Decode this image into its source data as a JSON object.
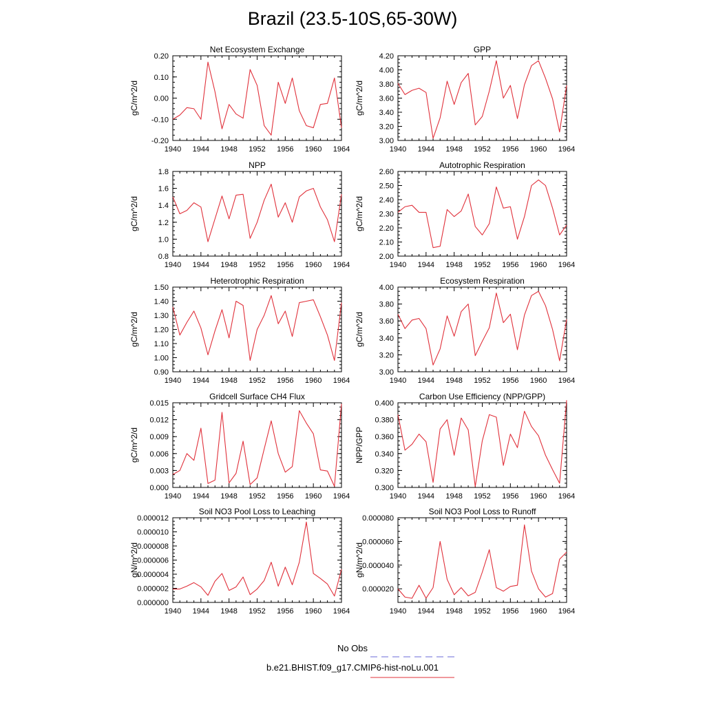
{
  "page": {
    "title": "Brazil (23.5-10S,65-30W)"
  },
  "legend": [
    {
      "label": "No Obs",
      "color": "#6a6ad8",
      "dash": true
    },
    {
      "label": "b.e21.BHIST.f09_g17.CMIP6-hist-noLu.001",
      "color": "#e0303a",
      "dash": false
    }
  ],
  "chart_data": [
    {
      "type": "line",
      "title": "Net Ecosystem Exchange",
      "ylabel": "gC/m^2/d",
      "xlim": [
        1940,
        1964
      ],
      "xticks": [
        "1940",
        "1944",
        "1948",
        "1952",
        "1956",
        "1960",
        "1964"
      ],
      "ylim": [
        -0.2,
        0.2
      ],
      "yticks": [
        "-0.20",
        "-0.10",
        "0.00",
        "0.10",
        "0.20"
      ],
      "x": [
        1940,
        1941,
        1942,
        1943,
        1944,
        1945,
        1946,
        1947,
        1948,
        1949,
        1950,
        1951,
        1952,
        1953,
        1954,
        1955,
        1956,
        1957,
        1958,
        1959,
        1960,
        1961,
        1962,
        1963,
        1964
      ],
      "series": [
        {
          "color": "#e0303a",
          "values": [
            -0.1,
            -0.08,
            -0.045,
            -0.05,
            -0.1,
            0.17,
            0.03,
            -0.145,
            -0.03,
            -0.075,
            -0.095,
            0.135,
            0.06,
            -0.13,
            -0.175,
            0.075,
            -0.025,
            0.095,
            -0.06,
            -0.13,
            -0.14,
            -0.03,
            -0.025,
            0.095,
            -0.14
          ]
        }
      ]
    },
    {
      "type": "line",
      "title": "GPP",
      "ylabel": "gC/m^2/d",
      "xlim": [
        1940,
        1964
      ],
      "xticks": [
        "1940",
        "1944",
        "1948",
        "1952",
        "1956",
        "1960",
        "1964"
      ],
      "ylim": [
        3.0,
        4.2
      ],
      "yticks": [
        "3.00",
        "3.20",
        "3.40",
        "3.60",
        "3.80",
        "4.00",
        "4.20"
      ],
      "x": [
        1940,
        1941,
        1942,
        1943,
        1944,
        1945,
        1946,
        1947,
        1948,
        1949,
        1950,
        1951,
        1952,
        1953,
        1954,
        1955,
        1956,
        1957,
        1958,
        1959,
        1960,
        1961,
        1962,
        1963,
        1964
      ],
      "series": [
        {
          "color": "#e0303a",
          "values": [
            3.81,
            3.65,
            3.71,
            3.74,
            3.68,
            3.03,
            3.32,
            3.84,
            3.51,
            3.82,
            3.95,
            3.22,
            3.34,
            3.7,
            4.13,
            3.6,
            3.78,
            3.31,
            3.79,
            4.06,
            4.13,
            3.88,
            3.59,
            3.12,
            3.78
          ]
        }
      ]
    },
    {
      "type": "line",
      "title": "NPP",
      "ylabel": "gC/m^2/d",
      "xlim": [
        1940,
        1964
      ],
      "xticks": [
        "1940",
        "1944",
        "1948",
        "1952",
        "1956",
        "1960",
        "1964"
      ],
      "ylim": [
        0.8,
        1.8
      ],
      "yticks": [
        "0.8",
        "1.0",
        "1.2",
        "1.4",
        "1.6",
        "1.8"
      ],
      "x": [
        1940,
        1941,
        1942,
        1943,
        1944,
        1945,
        1946,
        1947,
        1948,
        1949,
        1950,
        1951,
        1952,
        1953,
        1954,
        1955,
        1956,
        1957,
        1958,
        1959,
        1960,
        1961,
        1962,
        1963,
        1964
      ],
      "series": [
        {
          "color": "#e0303a",
          "values": [
            1.5,
            1.3,
            1.34,
            1.43,
            1.38,
            0.97,
            1.24,
            1.51,
            1.24,
            1.52,
            1.53,
            1.01,
            1.2,
            1.46,
            1.65,
            1.26,
            1.43,
            1.2,
            1.5,
            1.57,
            1.6,
            1.38,
            1.23,
            0.97,
            1.53
          ]
        }
      ]
    },
    {
      "type": "line",
      "title": "Autotrophic Respiration",
      "ylabel": "gC/m^2/d",
      "xlim": [
        1940,
        1964
      ],
      "xticks": [
        "1940",
        "1944",
        "1948",
        "1952",
        "1956",
        "1960",
        "1964"
      ],
      "ylim": [
        2.0,
        2.6
      ],
      "yticks": [
        "2.00",
        "2.10",
        "2.20",
        "2.30",
        "2.40",
        "2.50",
        "2.60"
      ],
      "x": [
        1940,
        1941,
        1942,
        1943,
        1944,
        1945,
        1946,
        1947,
        1948,
        1949,
        1950,
        1951,
        1952,
        1953,
        1954,
        1955,
        1956,
        1957,
        1958,
        1959,
        1960,
        1961,
        1962,
        1963,
        1964
      ],
      "series": [
        {
          "color": "#e0303a",
          "values": [
            2.31,
            2.35,
            2.36,
            2.31,
            2.31,
            2.06,
            2.07,
            2.33,
            2.28,
            2.32,
            2.44,
            2.21,
            2.15,
            2.23,
            2.49,
            2.34,
            2.35,
            2.12,
            2.28,
            2.5,
            2.54,
            2.5,
            2.34,
            2.15,
            2.22
          ]
        }
      ]
    },
    {
      "type": "line",
      "title": "Heterotrophic Respiration",
      "ylabel": "gC/m^2/d",
      "xlim": [
        1940,
        1964
      ],
      "xticks": [
        "1940",
        "1944",
        "1948",
        "1952",
        "1956",
        "1960",
        "1964"
      ],
      "ylim": [
        0.9,
        1.5
      ],
      "yticks": [
        "0.90",
        "1.00",
        "1.10",
        "1.20",
        "1.30",
        "1.40",
        "1.50"
      ],
      "x": [
        1940,
        1941,
        1942,
        1943,
        1944,
        1945,
        1946,
        1947,
        1948,
        1949,
        1950,
        1951,
        1952,
        1953,
        1954,
        1955,
        1956,
        1957,
        1958,
        1959,
        1960,
        1961,
        1962,
        1963,
        1964
      ],
      "series": [
        {
          "color": "#e0303a",
          "values": [
            1.36,
            1.16,
            1.25,
            1.33,
            1.21,
            1.02,
            1.19,
            1.34,
            1.14,
            1.4,
            1.37,
            0.98,
            1.2,
            1.3,
            1.44,
            1.24,
            1.33,
            1.15,
            1.39,
            1.4,
            1.41,
            1.29,
            1.16,
            0.98,
            1.39
          ]
        }
      ]
    },
    {
      "type": "line",
      "title": "Ecosystem Respiration",
      "ylabel": "gC/m^2/d",
      "xlim": [
        1940,
        1964
      ],
      "xticks": [
        "1940",
        "1944",
        "1948",
        "1952",
        "1956",
        "1960",
        "1964"
      ],
      "ylim": [
        3.0,
        4.0
      ],
      "yticks": [
        "3.00",
        "3.20",
        "3.40",
        "3.60",
        "3.80",
        "4.00"
      ],
      "x": [
        1940,
        1941,
        1942,
        1943,
        1944,
        1945,
        1946,
        1947,
        1948,
        1949,
        1950,
        1951,
        1952,
        1953,
        1954,
        1955,
        1956,
        1957,
        1958,
        1959,
        1960,
        1961,
        1962,
        1963,
        1964
      ],
      "series": [
        {
          "color": "#e0303a",
          "values": [
            3.68,
            3.51,
            3.61,
            3.63,
            3.51,
            3.08,
            3.27,
            3.66,
            3.42,
            3.71,
            3.8,
            3.19,
            3.36,
            3.52,
            3.93,
            3.58,
            3.68,
            3.26,
            3.67,
            3.9,
            3.95,
            3.78,
            3.5,
            3.13,
            3.62
          ]
        }
      ]
    },
    {
      "type": "line",
      "title": "Gridcell Surface CH4 Flux",
      "ylabel": "gC/m^2/d",
      "xlim": [
        1940,
        1964
      ],
      "xticks": [
        "1940",
        "1944",
        "1948",
        "1952",
        "1956",
        "1960",
        "1964"
      ],
      "ylim": [
        0.0,
        0.015
      ],
      "yticks": [
        "0.000",
        "0.003",
        "0.006",
        "0.009",
        "0.012",
        "0.015"
      ],
      "x": [
        1940,
        1941,
        1942,
        1943,
        1944,
        1945,
        1946,
        1947,
        1948,
        1949,
        1950,
        1951,
        1952,
        1953,
        1954,
        1955,
        1956,
        1957,
        1958,
        1959,
        1960,
        1961,
        1962,
        1963,
        1964
      ],
      "series": [
        {
          "color": "#e0303a",
          "values": [
            0.0023,
            0.003,
            0.006,
            0.0048,
            0.0105,
            0.0007,
            0.0013,
            0.0133,
            0.0008,
            0.0025,
            0.0082,
            0.0005,
            0.0017,
            0.0068,
            0.0118,
            0.006,
            0.0027,
            0.0037,
            0.0136,
            0.0114,
            0.0095,
            0.0031,
            0.0029,
            0.0002,
            0.0148
          ]
        }
      ]
    },
    {
      "type": "line",
      "title": "Carbon Use Efficiency (NPP/GPP)",
      "ylabel": "NPP/GPP",
      "xlim": [
        1940,
        1964
      ],
      "xticks": [
        "1940",
        "1944",
        "1948",
        "1952",
        "1956",
        "1960",
        "1964"
      ],
      "ylim": [
        0.3,
        0.4
      ],
      "yticks": [
        "0.300",
        "0.320",
        "0.340",
        "0.360",
        "0.380",
        "0.400"
      ],
      "x": [
        1940,
        1941,
        1942,
        1943,
        1944,
        1945,
        1946,
        1947,
        1948,
        1949,
        1950,
        1951,
        1952,
        1953,
        1954,
        1955,
        1956,
        1957,
        1958,
        1959,
        1960,
        1961,
        1962,
        1963,
        1964
      ],
      "series": [
        {
          "color": "#e0303a",
          "values": [
            0.386,
            0.344,
            0.351,
            0.363,
            0.354,
            0.306,
            0.369,
            0.38,
            0.338,
            0.382,
            0.368,
            0.301,
            0.355,
            0.386,
            0.383,
            0.326,
            0.363,
            0.347,
            0.39,
            0.372,
            0.361,
            0.338,
            0.321,
            0.305,
            0.403
          ]
        }
      ]
    },
    {
      "type": "line",
      "title": "Soil NO3 Pool Loss to Leaching",
      "ylabel": "gN/m^2/d",
      "xlim": [
        1940,
        1964
      ],
      "xticks": [
        "1940",
        "1944",
        "1948",
        "1952",
        "1956",
        "1960",
        "1964"
      ],
      "ylim": [
        0.0,
        1.2e-05
      ],
      "yticks": [
        "0.000000",
        "0.000002",
        "0.000004",
        "0.000006",
        "0.000008",
        "0.000010",
        "0.000012"
      ],
      "x": [
        1940,
        1941,
        1942,
        1943,
        1944,
        1945,
        1946,
        1947,
        1948,
        1949,
        1950,
        1951,
        1952,
        1953,
        1954,
        1955,
        1956,
        1957,
        1958,
        1959,
        1960,
        1961,
        1962,
        1963,
        1964
      ],
      "series": [
        {
          "color": "#e0303a",
          "values": [
            1.9e-06,
            1.9e-06,
            2.3e-06,
            2.8e-06,
            2.2e-06,
            1e-06,
            3e-06,
            4.1e-06,
            1.7e-06,
            2.2e-06,
            3.6e-06,
            1.1e-06,
            1.9e-06,
            3.1e-06,
            5.7e-06,
            2.3e-06,
            5e-06,
            2.5e-06,
            5.7e-06,
            1.14e-05,
            4.1e-06,
            3.4e-06,
            2.6e-06,
            9e-07,
            4.7e-06
          ]
        }
      ]
    },
    {
      "type": "line",
      "title": "Soil NO3 Pool Loss to Runoff",
      "ylabel": "gN/m^2/d",
      "xlim": [
        1940,
        1964
      ],
      "xticks": [
        "1940",
        "1944",
        "1948",
        "1952",
        "1956",
        "1960",
        "1964"
      ],
      "ylim": [
        8.5e-06,
        8e-05
      ],
      "yticks": [
        "0.000020",
        "0.000040",
        "0.000060",
        "0.000080"
      ],
      "x": [
        1940,
        1941,
        1942,
        1943,
        1944,
        1945,
        1946,
        1947,
        1948,
        1949,
        1950,
        1951,
        1952,
        1953,
        1954,
        1955,
        1956,
        1957,
        1958,
        1959,
        1960,
        1961,
        1962,
        1963,
        1964
      ],
      "series": [
        {
          "color": "#e0303a",
          "values": [
            2e-05,
            1.3e-05,
            1.2e-05,
            2.3e-05,
            1.2e-05,
            2.1e-05,
            6e-05,
            2.8e-05,
            1.5e-05,
            2.1e-05,
            1.4e-05,
            1.7e-05,
            3.4e-05,
            5.3e-05,
            2.1e-05,
            1.8e-05,
            2.2e-05,
            2.3e-05,
            7.4e-05,
            3.5e-05,
            2e-05,
            1.3e-05,
            1.6e-05,
            4.5e-05,
            5.1e-05
          ]
        }
      ]
    }
  ]
}
